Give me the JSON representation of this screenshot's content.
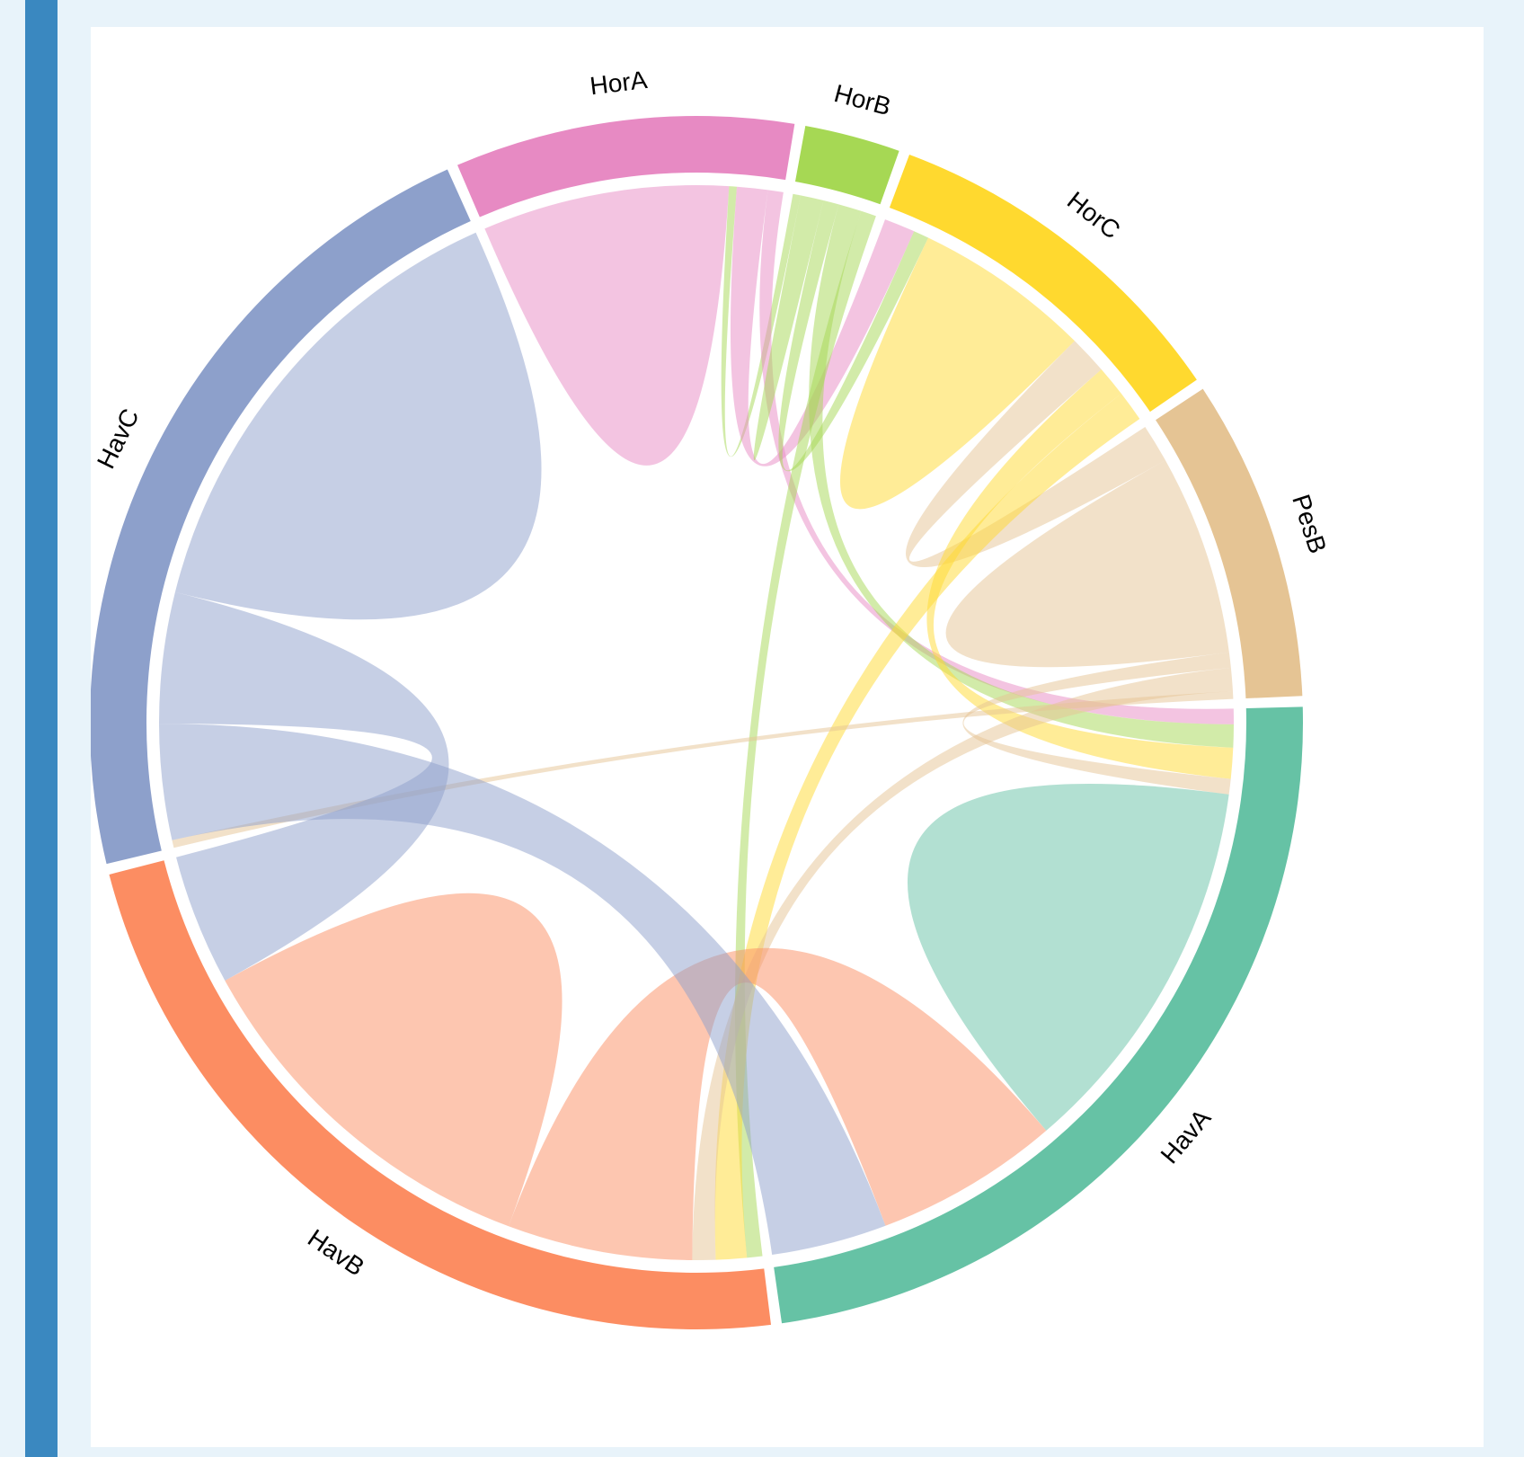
{
  "chart_data": {
    "type": "chord",
    "title": "",
    "groups": [
      {
        "name": "HorA",
        "color": "#e78ac3"
      },
      {
        "name": "HorB",
        "color": "#a6d854"
      },
      {
        "name": "HorC",
        "color": "#ffd92f"
      },
      {
        "name": "PesB",
        "color": "#e5c494"
      },
      {
        "name": "HavA",
        "color": "#66c2a5"
      },
      {
        "name": "HavB",
        "color": "#fc8d62"
      },
      {
        "name": "HavC",
        "color": "#8da0cb"
      }
    ],
    "matrix": [
      [
        32,
        1,
        4,
        0,
        2,
        0,
        0
      ],
      [
        1,
        3,
        2,
        0,
        3,
        2,
        0
      ],
      [
        4,
        2,
        23,
        5,
        4,
        4,
        0
      ],
      [
        0,
        0,
        5,
        26,
        2,
        3,
        1
      ],
      [
        2,
        3,
        4,
        2,
        50,
        24,
        15
      ],
      [
        0,
        2,
        4,
        3,
        24,
        49,
        17
      ],
      [
        0,
        0,
        0,
        1,
        15,
        17,
        62
      ]
    ]
  }
}
